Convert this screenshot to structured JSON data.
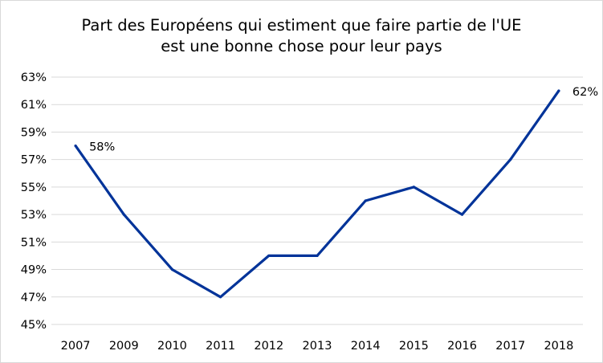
{
  "chart_data": {
    "type": "line",
    "title": "Part des Européens qui estiment que faire partie de l'UE",
    "subtitle": "est une bonne chose pour leur pays",
    "xlabel": "",
    "ylabel": "",
    "categories": [
      "2007",
      "2009",
      "2010",
      "2011",
      "2012",
      "2013",
      "2014",
      "2015",
      "2016",
      "2017",
      "2018"
    ],
    "series": [
      {
        "values": [
          58,
          53,
          49,
          47,
          50,
          50,
          54,
          55,
          53,
          57,
          62
        ]
      }
    ],
    "ylim": [
      45,
      63
    ],
    "yticks": [
      "45%",
      "47%",
      "49%",
      "51%",
      "53%",
      "55%",
      "57%",
      "59%",
      "61%",
      "63%"
    ],
    "data_labels": [
      {
        "index": 0,
        "text": "58%"
      },
      {
        "index": 10,
        "text": "62%"
      }
    ],
    "grid": true,
    "legend": "none",
    "colors": {
      "line": "#003399",
      "grid": "#d9d9d9",
      "text": "#000000"
    }
  }
}
